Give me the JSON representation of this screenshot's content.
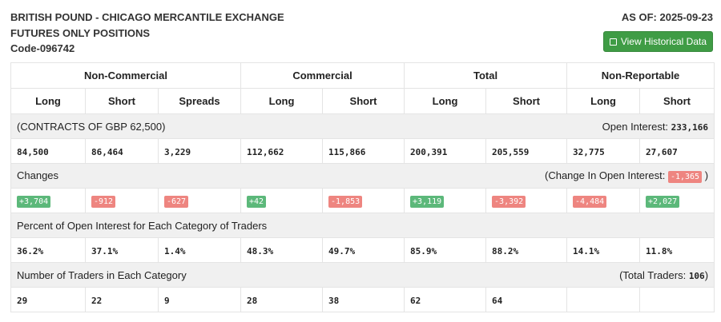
{
  "header": {
    "title1": "BRITISH POUND - CHICAGO MERCANTILE EXCHANGE",
    "title2": "FUTURES ONLY POSITIONS",
    "code": "Code-096742",
    "as_of": "AS OF: 2025-09-23",
    "button": "View Historical Data",
    "button_icon": "calendar-icon",
    "button_color": "#3f9c45"
  },
  "groups": [
    "Non-Commercial",
    "Commercial",
    "Total",
    "Non-Reportable"
  ],
  "columns": [
    "Long",
    "Short",
    "Spreads",
    "Long",
    "Short",
    "Long",
    "Short",
    "Long",
    "Short"
  ],
  "contracts": {
    "label": "(CONTRACTS OF GBP 62,500)",
    "oi_label": "Open Interest:",
    "oi_value": "233,166",
    "values": [
      "84,500",
      "86,464",
      "3,229",
      "112,662",
      "115,866",
      "200,391",
      "205,559",
      "32,775",
      "27,607"
    ]
  },
  "changes": {
    "label": "Changes",
    "oi_label": "(Change In Open Interest:",
    "oi_value": "-1,365",
    "oi_close": ")",
    "values": [
      "+3,704",
      "-912",
      "-627",
      "+42",
      "-1,853",
      "+3,119",
      "-3,392",
      "-4,484",
      "+2,027"
    ],
    "colors": {
      "up": "#5cb87a",
      "down": "#ee8580"
    }
  },
  "percent": {
    "label": "Percent of Open Interest for Each Category of Traders",
    "values": [
      "36.2%",
      "37.1%",
      "1.4%",
      "48.3%",
      "49.7%",
      "85.9%",
      "88.2%",
      "14.1%",
      "11.8%"
    ]
  },
  "traders": {
    "label": "Number of Traders in Each Category",
    "total_label": "(Total Traders:",
    "total_value": "106",
    "total_close": ")",
    "values": [
      "29",
      "22",
      "9",
      "28",
      "38",
      "62",
      "64",
      "",
      ""
    ]
  }
}
